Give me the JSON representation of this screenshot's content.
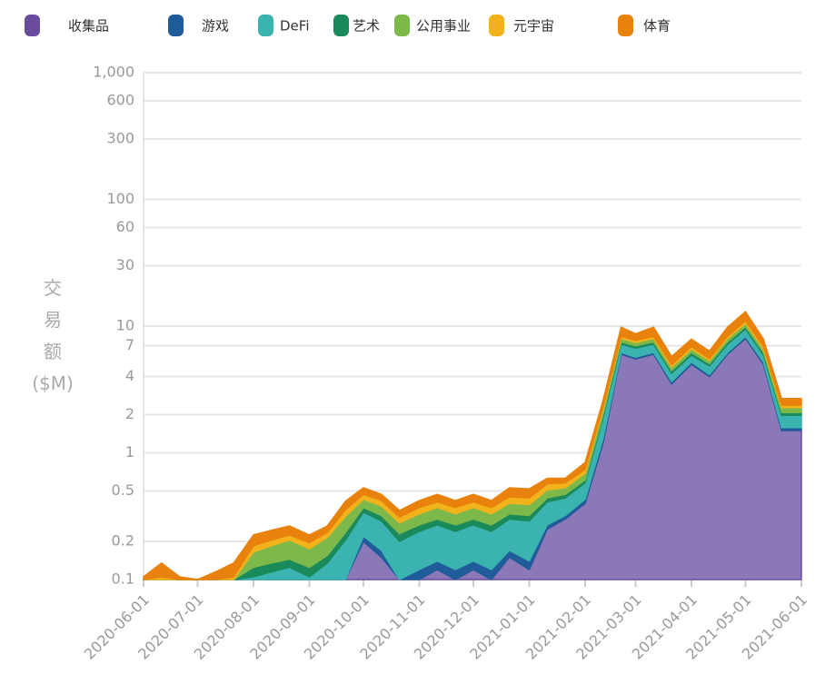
{
  "chart_data": {
    "type": "stacked_area",
    "y_label": "交易额($M)",
    "log_scale": true,
    "grid": true,
    "x": [
      "2020-06-01",
      "2020-06-11",
      "2020-06-21",
      "2020-07-01",
      "2020-07-11",
      "2020-07-21",
      "2020-08-01",
      "2020-08-11",
      "2020-08-21",
      "2020-09-01",
      "2020-09-11",
      "2020-09-21",
      "2020-10-01",
      "2020-10-11",
      "2020-10-21",
      "2020-11-01",
      "2020-11-11",
      "2020-11-21",
      "2020-12-01",
      "2020-12-11",
      "2020-12-21",
      "2021-01-01",
      "2021-01-11",
      "2021-01-21",
      "2021-02-01",
      "2021-02-11",
      "2021-02-21",
      "2021-03-01",
      "2021-03-11",
      "2021-03-21",
      "2021-04-01",
      "2021-04-11",
      "2021-04-21",
      "2021-05-01",
      "2021-05-11",
      "2021-05-21",
      "2021-06-01"
    ],
    "xlim": [
      "2020-06-01",
      "2021-06-01"
    ],
    "xticks": [
      "2020-06-01",
      "2020-07-01",
      "2020-08-01",
      "2020-09-01",
      "2020-10-01",
      "2020-11-01",
      "2020-12-01",
      "2021-01-01",
      "2021-02-01",
      "2021-03-01",
      "2021-04-01",
      "2021-05-01",
      "2021-06-01"
    ],
    "ylim": [
      0.1,
      1000
    ],
    "yticks": [
      0.1,
      0.2,
      0.5,
      1,
      2,
      4,
      7,
      10,
      30,
      60,
      100,
      300,
      600,
      {
        "value": 1000,
        "label": "1,000"
      }
    ],
    "series": [
      {
        "name": "收集品",
        "color": "#6a4c9c",
        "fill": "#8b78b8",
        "values": [
          0.01,
          0.01,
          0.01,
          0.01,
          0.01,
          0.01,
          0.02,
          0.02,
          0.02,
          0.02,
          0.03,
          0.05,
          0.2,
          0.15,
          0.08,
          0.1,
          0.12,
          0.1,
          0.12,
          0.1,
          0.15,
          0.12,
          0.25,
          0.3,
          0.4,
          1.2,
          6,
          5.5,
          6,
          3.5,
          5,
          4,
          6,
          8,
          5,
          1.5,
          1.5
        ]
      },
      {
        "name": "游戏",
        "color": "#1f5c99",
        "values": [
          0.005,
          0.005,
          0.005,
          0.005,
          0.005,
          0.005,
          0.005,
          0.005,
          0.005,
          0.005,
          0.005,
          0.005,
          0.02,
          0.02,
          0.02,
          0.02,
          0.02,
          0.02,
          0.02,
          0.02,
          0.02,
          0.02,
          0.02,
          0.02,
          0.03,
          0.1,
          0.2,
          0.2,
          0.2,
          0.15,
          0.2,
          0.15,
          0.2,
          0.3,
          0.2,
          0.08,
          0.08
        ]
      },
      {
        "name": "DeFi",
        "color": "#3bb3b0",
        "values": [
          0.04,
          0.05,
          0.04,
          0.03,
          0.04,
          0.05,
          0.08,
          0.09,
          0.1,
          0.08,
          0.1,
          0.15,
          0.12,
          0.12,
          0.1,
          0.12,
          0.13,
          0.12,
          0.13,
          0.12,
          0.13,
          0.15,
          0.14,
          0.12,
          0.15,
          0.6,
          1,
          1,
          1,
          0.6,
          0.7,
          0.7,
          1,
          1.2,
          0.7,
          0.4,
          0.4
        ]
      },
      {
        "name": "艺术",
        "color": "#1b8a5a",
        "values": [
          0.01,
          0.01,
          0.01,
          0.01,
          0.01,
          0.01,
          0.02,
          0.02,
          0.02,
          0.02,
          0.02,
          0.03,
          0.03,
          0.03,
          0.03,
          0.03,
          0.03,
          0.03,
          0.03,
          0.03,
          0.03,
          0.03,
          0.03,
          0.03,
          0.03,
          0.1,
          0.3,
          0.3,
          0.3,
          0.2,
          0.3,
          0.2,
          0.3,
          0.4,
          0.3,
          0.1,
          0.1
        ]
      },
      {
        "name": "公用事业",
        "color": "#7cb84a",
        "values": [
          0.01,
          0.02,
          0.01,
          0.01,
          0.02,
          0.02,
          0.04,
          0.05,
          0.06,
          0.05,
          0.06,
          0.08,
          0.06,
          0.06,
          0.05,
          0.06,
          0.07,
          0.06,
          0.07,
          0.06,
          0.07,
          0.07,
          0.07,
          0.06,
          0.08,
          0.2,
          0.5,
          0.4,
          0.5,
          0.3,
          0.4,
          0.3,
          0.5,
          0.6,
          0.4,
          0.2,
          0.2
        ]
      },
      {
        "name": "元宇宙",
        "color": "#f2b21c",
        "values": [
          0.01,
          0.01,
          0.01,
          0.01,
          0.01,
          0.01,
          0.02,
          0.02,
          0.02,
          0.02,
          0.02,
          0.04,
          0.04,
          0.04,
          0.03,
          0.04,
          0.04,
          0.04,
          0.04,
          0.04,
          0.05,
          0.05,
          0.06,
          0.05,
          0.05,
          0.1,
          0.3,
          0.3,
          0.3,
          0.2,
          0.3,
          0.2,
          0.3,
          0.5,
          0.3,
          0.1,
          0.1
        ]
      },
      {
        "name": "体育",
        "color": "#e8820c",
        "values": [
          0.02,
          0.03,
          0.02,
          0.02,
          0.02,
          0.03,
          0.04,
          0.04,
          0.04,
          0.03,
          0.03,
          0.06,
          0.06,
          0.05,
          0.04,
          0.05,
          0.06,
          0.05,
          0.06,
          0.05,
          0.08,
          0.08,
          0.06,
          0.05,
          0.1,
          0.3,
          1.5,
          1,
          1.5,
          0.8,
          1,
          0.8,
          1.5,
          2,
          1,
          0.3,
          0.3
        ]
      }
    ]
  }
}
